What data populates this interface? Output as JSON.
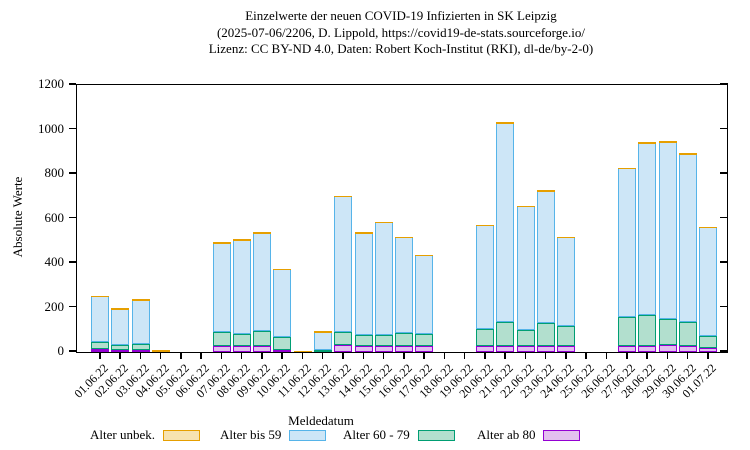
{
  "title": {
    "line1": "Einzelwerte der neuen COVID-19 Infizierten in SK Leipzig",
    "line2": "(2025-07-06/2206, D. Lippold, https://covid19-de-stats.sourceforge.io/",
    "line3": "Lizenz: CC BY-ND 4.0, Daten: Robert Koch-Institut (RKI), dl-de/by-2-0)"
  },
  "chart_data": {
    "type": "bar",
    "stacked": true,
    "title": "Einzelwerte der neuen COVID-19 Infizierten in SK Leipzig",
    "xlabel": "Meldedatum",
    "ylabel": "Absolute Werte",
    "ylim": [
      0,
      1200
    ],
    "yticks": [
      0,
      200,
      400,
      600,
      800,
      1000,
      1200
    ],
    "grid": false,
    "legend_position": "bottom",
    "categories": [
      "01.06.22",
      "02.06.22",
      "03.06.22",
      "04.06.22",
      "05.06.22",
      "06.06.22",
      "07.06.22",
      "08.06.22",
      "09.06.22",
      "10.06.22",
      "11.06.22",
      "12.06.22",
      "13.06.22",
      "14.06.22",
      "15.06.22",
      "16.06.22",
      "17.06.22",
      "18.06.22",
      "19.06.22",
      "20.06.22",
      "21.06.22",
      "22.06.22",
      "23.06.22",
      "24.06.22",
      "25.06.22",
      "26.06.22",
      "27.06.22",
      "28.06.22",
      "29.06.22",
      "30.06.22",
      "01.07.22"
    ],
    "series": [
      {
        "name": "Alter ab 80",
        "border": "#9400D3",
        "fill": "#E3BFEF",
        "values": [
          13,
          10,
          11,
          0,
          0,
          0,
          25,
          25,
          25,
          10,
          0,
          2,
          32,
          25,
          25,
          29,
          25,
          0,
          0,
          25,
          28,
          25,
          26,
          25,
          0,
          0,
          28,
          28,
          32,
          28,
          17
        ]
      },
      {
        "name": "Alter 60 - 79",
        "border": "#009E73",
        "fill": "#B2DFCE",
        "values": [
          31,
          22,
          26,
          3,
          0,
          0,
          67,
          57,
          70,
          56,
          0,
          5,
          56,
          52,
          52,
          56,
          55,
          0,
          0,
          80,
          109,
          75,
          103,
          90,
          0,
          0,
          128,
          139,
          115,
          109,
          56
        ]
      },
      {
        "name": "Alter bis 59",
        "border": "#56B4E9",
        "fill": "#CDE6F7",
        "values": [
          206,
          163,
          198,
          2,
          0,
          0,
          398,
          423,
          440,
          306,
          4,
          85,
          612,
          458,
          506,
          430,
          354,
          0,
          0,
          465,
          893,
          555,
          596,
          400,
          0,
          0,
          669,
          773,
          798,
          753,
          487
        ]
      },
      {
        "name": "Alter unbek.",
        "border": "#E69F00",
        "fill": "#F7E3B1",
        "values": [
          0,
          0,
          0,
          0,
          0,
          0,
          0,
          0,
          0,
          0,
          0,
          0,
          0,
          0,
          0,
          0,
          0,
          0,
          0,
          0,
          0,
          0,
          0,
          0,
          0,
          0,
          0,
          0,
          0,
          0,
          0
        ]
      }
    ],
    "totals": [
      250,
      195,
      235,
      5,
      0,
      0,
      490,
      505,
      535,
      372,
      4,
      92,
      700,
      535,
      583,
      515,
      434,
      0,
      0,
      570,
      1030,
      655,
      725,
      515,
      0,
      0,
      825,
      940,
      945,
      890,
      560
    ],
    "legend_order": [
      "Alter unbek.",
      "Alter bis 59",
      "Alter 60 - 79",
      "Alter ab 80"
    ]
  }
}
